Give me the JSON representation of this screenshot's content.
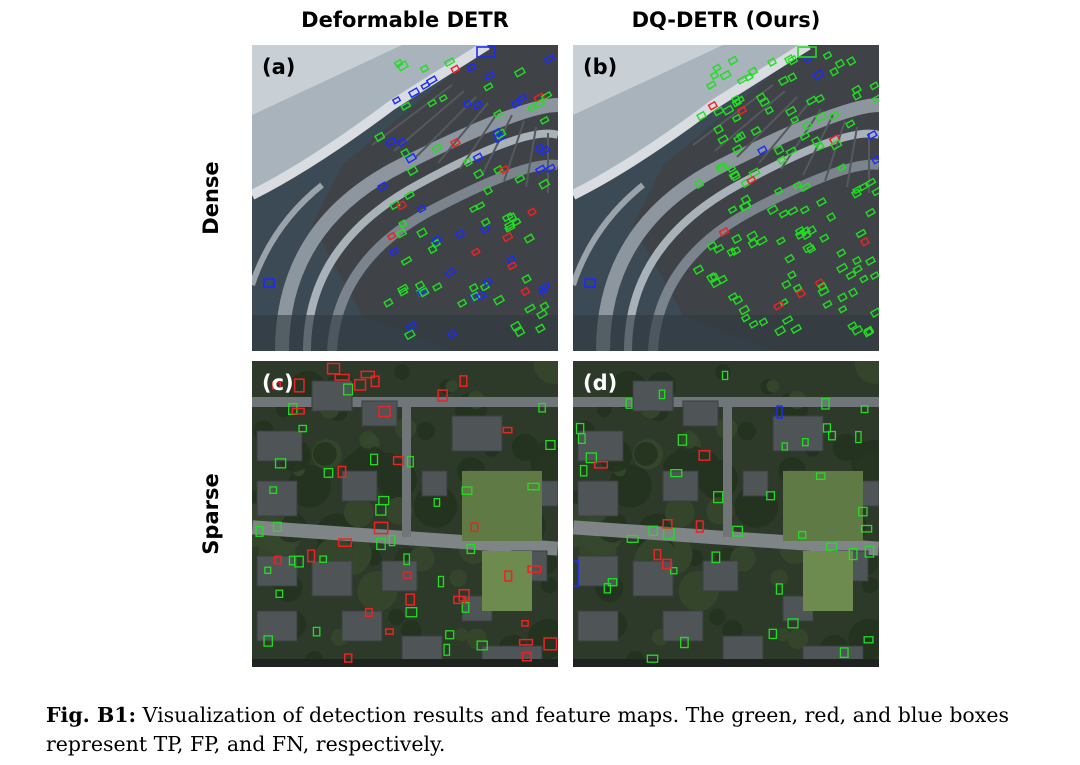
{
  "columns": [
    "Deformable DETR",
    "DQ-DETR (Ours)"
  ],
  "rows": [
    "Dense",
    "Sparse"
  ],
  "panels": [
    {
      "label": "(a)",
      "row": "Dense",
      "column": "Deformable DETR"
    },
    {
      "label": "(b)",
      "row": "Dense",
      "column": "DQ-DETR (Ours)"
    },
    {
      "label": "(c)",
      "row": "Sparse",
      "column": "Deformable DETR"
    },
    {
      "label": "(d)",
      "row": "Sparse",
      "column": "DQ-DETR (Ours)"
    }
  ],
  "caption": {
    "label": "Fig. B1:",
    "text": " Visualization of detection results and feature maps. The green, red, and blue boxes represent TP, FP, and FN, respectively."
  },
  "box_colors": {
    "TP": "#22dd22",
    "FP": "#ee2222",
    "FN": "#1a2bff"
  }
}
